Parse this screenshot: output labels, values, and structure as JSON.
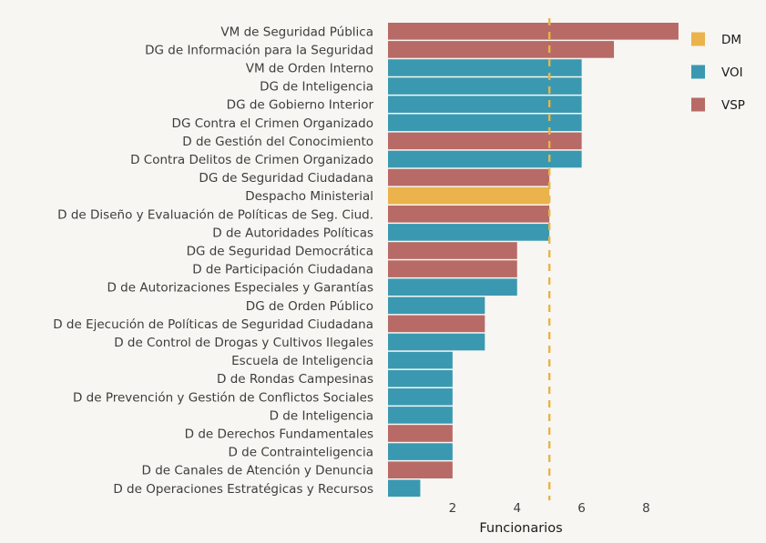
{
  "chart_data": {
    "type": "bar",
    "orientation": "horizontal",
    "title": "",
    "xlabel": "Funcionarios",
    "ylabel": "",
    "xlim": [
      0,
      9.2
    ],
    "xticks": [
      2,
      4,
      6,
      8
    ],
    "grid": false,
    "reference_line": {
      "value": 5,
      "style": "dashed",
      "color": "#e8b447"
    },
    "legend": {
      "position": "top-right",
      "entries": [
        {
          "key": "DM",
          "label": "DM",
          "color": "#ebb34b"
        },
        {
          "key": "VOI",
          "label": "VOI",
          "color": "#3a99b1"
        },
        {
          "key": "VSP",
          "label": "VSP",
          "color": "#b86a66"
        }
      ]
    },
    "bars": [
      {
        "label": "VM de Seguridad Pública",
        "value": 9,
        "group": "VSP"
      },
      {
        "label": "DG de Información para la Seguridad",
        "value": 7,
        "group": "VSP"
      },
      {
        "label": "VM de Orden Interno",
        "value": 6,
        "group": "VOI"
      },
      {
        "label": "DG de Inteligencia",
        "value": 6,
        "group": "VOI"
      },
      {
        "label": "DG de Gobierno Interior",
        "value": 6,
        "group": "VOI"
      },
      {
        "label": "DG Contra el Crimen Organizado",
        "value": 6,
        "group": "VOI"
      },
      {
        "label": "D de Gestión del Conocimiento",
        "value": 6,
        "group": "VSP"
      },
      {
        "label": "D Contra Delitos de Crimen Organizado",
        "value": 6,
        "group": "VOI"
      },
      {
        "label": "DG de Seguridad Ciudadana",
        "value": 5,
        "group": "VSP"
      },
      {
        "label": "Despacho Ministerial",
        "value": 5,
        "group": "DM"
      },
      {
        "label": "D de Diseño y Evaluación de Políticas de Seg. Ciud.",
        "value": 5,
        "group": "VSP"
      },
      {
        "label": "D de Autoridades Políticas",
        "value": 5,
        "group": "VOI"
      },
      {
        "label": "DG de Seguridad Democrática",
        "value": 4,
        "group": "VSP"
      },
      {
        "label": "D de Participación Ciudadana",
        "value": 4,
        "group": "VSP"
      },
      {
        "label": "D de Autorizaciones Especiales y Garantías",
        "value": 4,
        "group": "VOI"
      },
      {
        "label": "DG de Orden Público",
        "value": 3,
        "group": "VOI"
      },
      {
        "label": "D de Ejecución de Políticas de Seguridad Ciudadana",
        "value": 3,
        "group": "VSP"
      },
      {
        "label": "D de Control de Drogas y Cultivos Ilegales",
        "value": 3,
        "group": "VOI"
      },
      {
        "label": "Escuela de Inteligencia",
        "value": 2,
        "group": "VOI"
      },
      {
        "label": "D de Rondas Campesinas",
        "value": 2,
        "group": "VOI"
      },
      {
        "label": "D de Prevención y Gestión de Conflictos Sociales",
        "value": 2,
        "group": "VOI"
      },
      {
        "label": "D de Inteligencia",
        "value": 2,
        "group": "VOI"
      },
      {
        "label": "D de Derechos Fundamentales",
        "value": 2,
        "group": "VSP"
      },
      {
        "label": "D de Contrainteligencia",
        "value": 2,
        "group": "VOI"
      },
      {
        "label": "D de Canales de Atención y Denuncia",
        "value": 2,
        "group": "VSP"
      },
      {
        "label": "D de Operaciones Estratégicas y Recursos",
        "value": 1,
        "group": "VOI"
      }
    ]
  }
}
